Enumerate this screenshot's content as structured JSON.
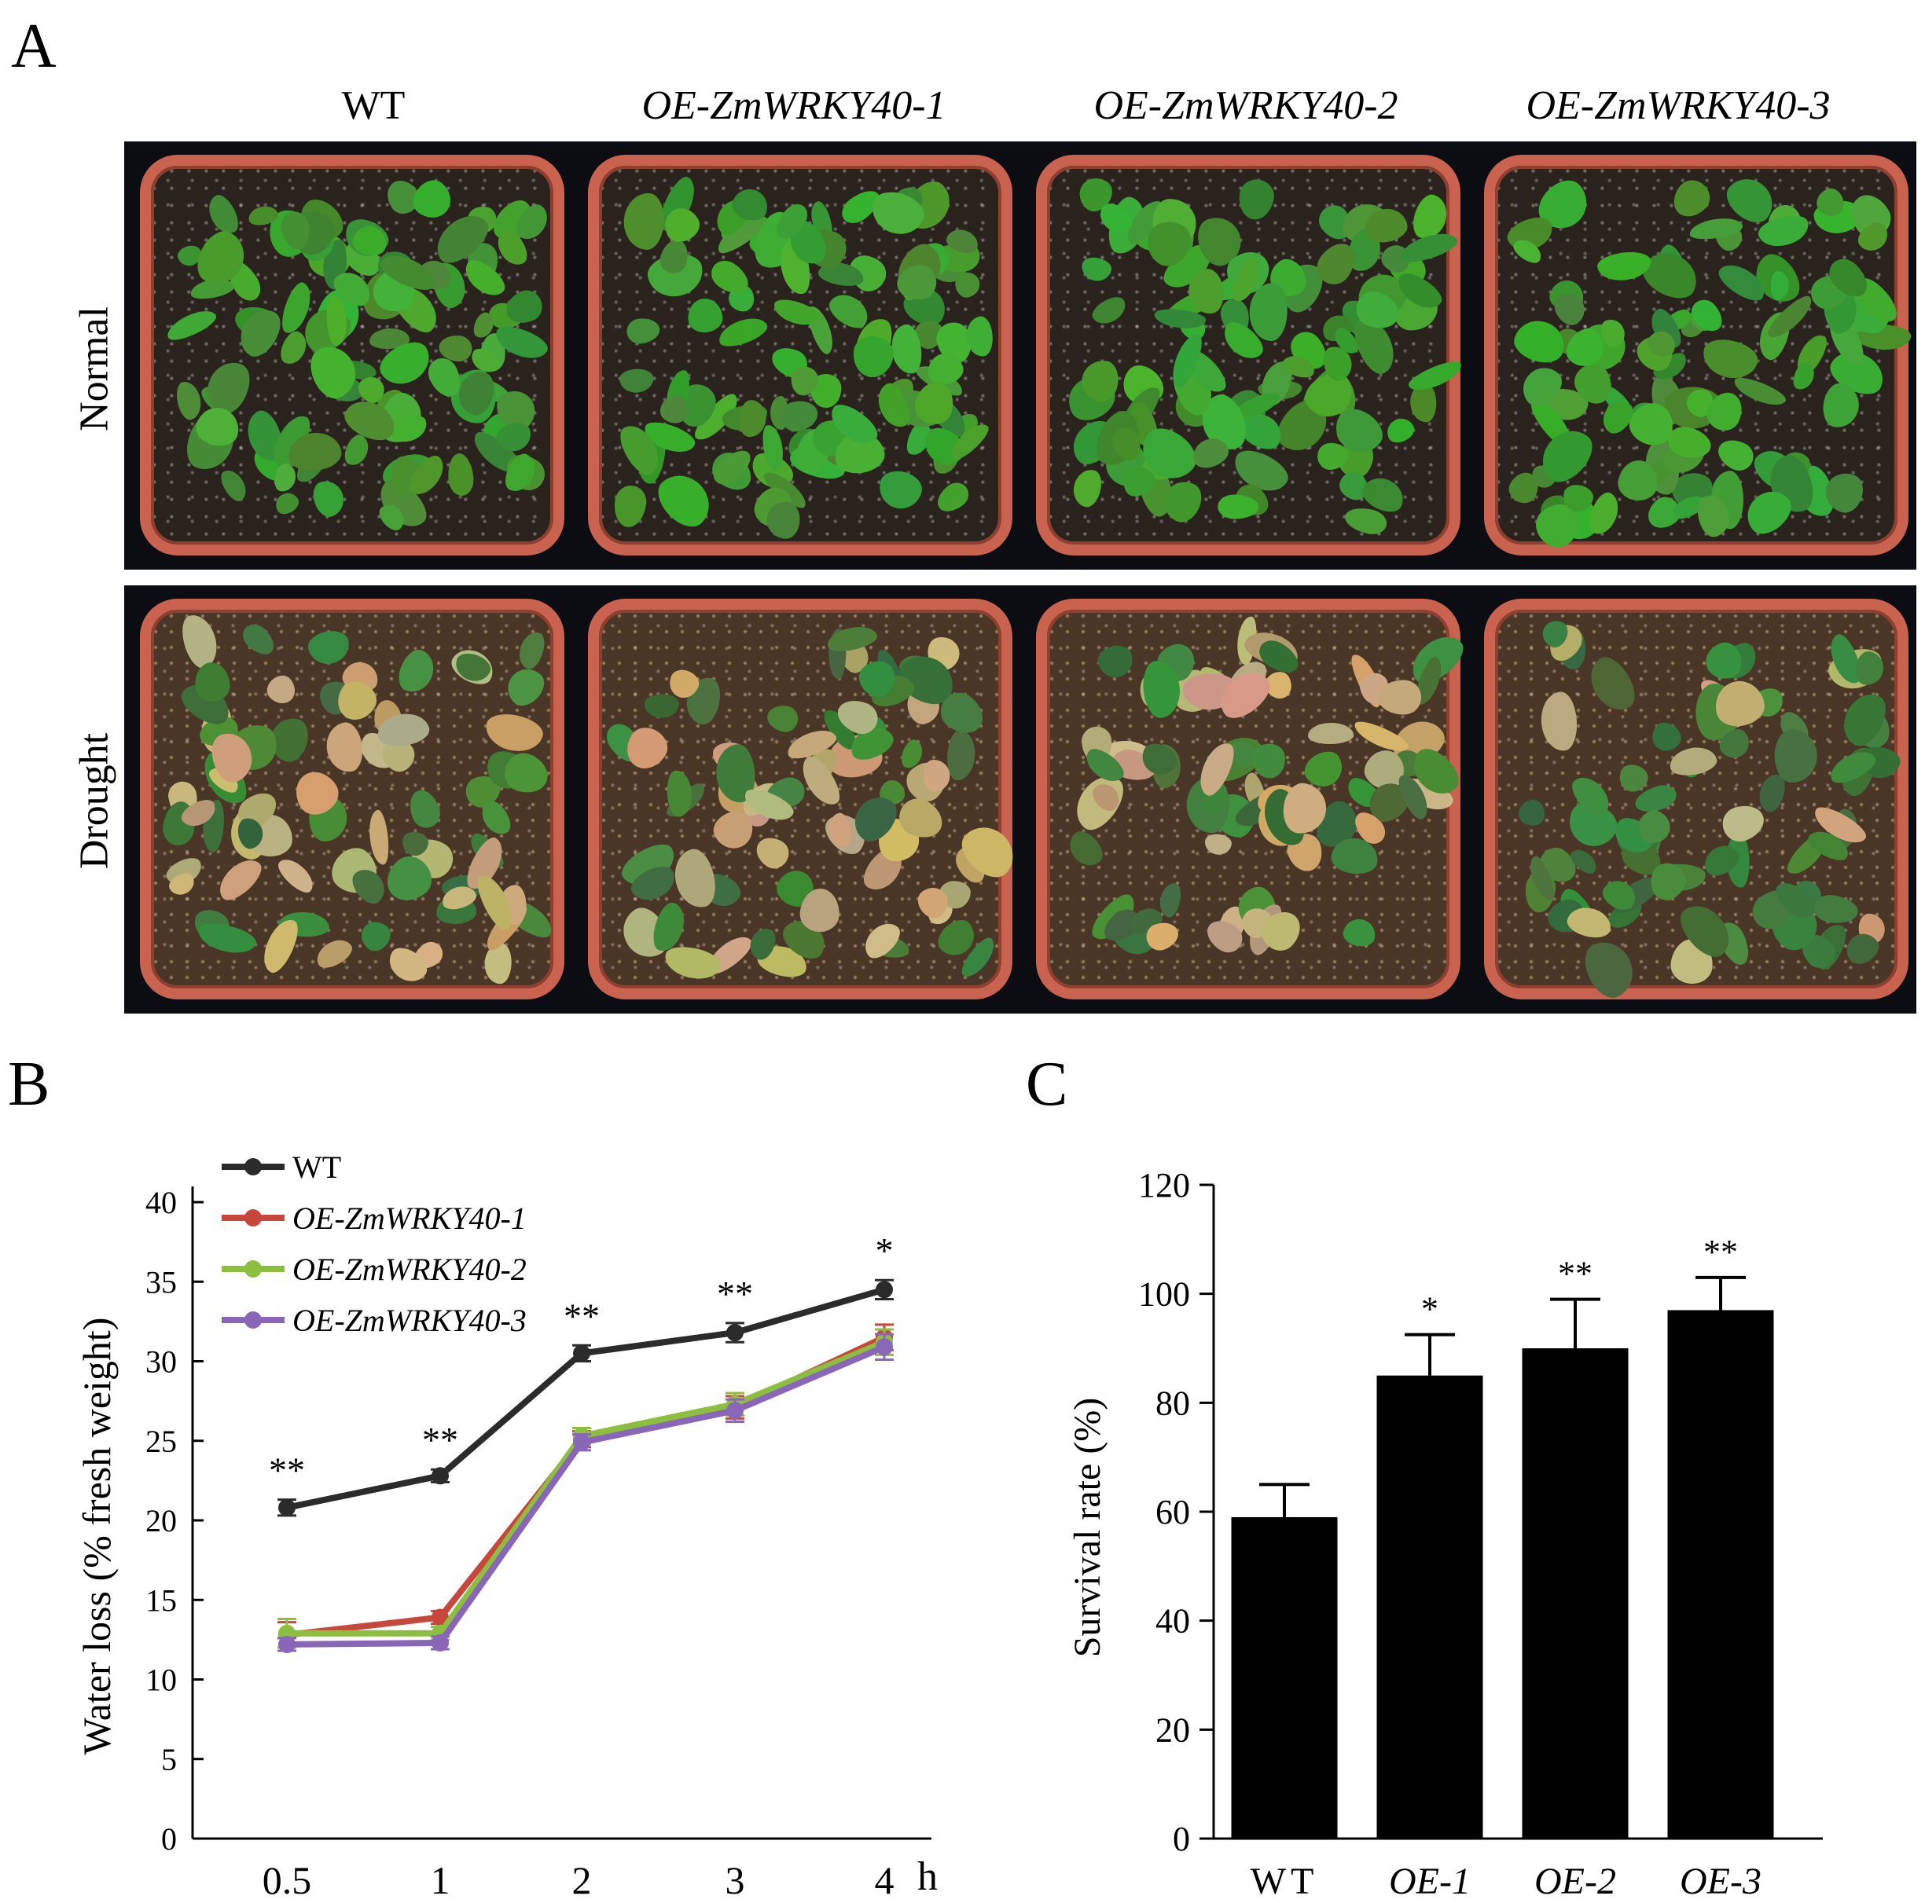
{
  "panel_a": {
    "letter": "A",
    "columns": [
      "WT",
      "OE-ZmWRKY40-1",
      "OE-ZmWRKY40-2",
      "OE-ZmWRKY40-3"
    ],
    "rows": [
      "Normal",
      "Drought"
    ],
    "colors": {
      "pot": "#c9624e",
      "leaf_healthy": "#3f9a3a",
      "leaf_stressed": "#c8b47a",
      "background": "#0b0d12"
    }
  },
  "panel_b": {
    "letter": "B"
  },
  "panel_c": {
    "letter": "C"
  },
  "chart_data": [
    {
      "type": "line",
      "x": [
        "0.5",
        "1",
        "2",
        "3",
        "4"
      ],
      "xunit": "h",
      "ylabel": "Water loss (% fresh weight)",
      "ylim": [
        0,
        40
      ],
      "yticks": [
        0,
        5,
        10,
        15,
        20,
        25,
        30,
        35,
        40
      ],
      "legend_position": "top-left",
      "series": [
        {
          "name": "WT",
          "values": [
            20.8,
            22.8,
            30.5,
            31.8,
            34.5
          ],
          "errors": [
            0.5,
            0.4,
            0.5,
            0.6,
            0.6
          ],
          "color": "#2b2b2b"
        },
        {
          "name": "OE-ZmWRKY40-1",
          "values": [
            12.8,
            13.9,
            25.1,
            27.1,
            31.5
          ],
          "errors": [
            0.8,
            0.4,
            0.5,
            0.7,
            0.8
          ],
          "color": "#c8473c"
        },
        {
          "name": "OE-ZmWRKY40-2",
          "values": [
            12.9,
            12.9,
            25.3,
            27.3,
            31.2
          ],
          "errors": [
            0.9,
            0.4,
            0.5,
            0.7,
            0.8
          ],
          "color": "#8cbf3f"
        },
        {
          "name": "OE-ZmWRKY40-3",
          "values": [
            12.2,
            12.3,
            24.9,
            26.9,
            30.9
          ],
          "errors": [
            0.4,
            0.4,
            0.5,
            0.7,
            0.8
          ],
          "color": "#8a66b8"
        }
      ],
      "annotations": [
        "**",
        "**",
        "**",
        "**",
        "*"
      ]
    },
    {
      "type": "bar",
      "categories": [
        "WT",
        "OE-1",
        "OE-2",
        "OE-3"
      ],
      "values": [
        59,
        85,
        90,
        97
      ],
      "errors": [
        6,
        7.5,
        9,
        6
      ],
      "annotations": [
        "",
        "*",
        "**",
        "**"
      ],
      "ylabel": "Survival rate (%)",
      "ylim": [
        0,
        120
      ],
      "yticks": [
        0,
        20,
        40,
        60,
        80,
        100,
        120
      ],
      "color": "#000000"
    }
  ]
}
